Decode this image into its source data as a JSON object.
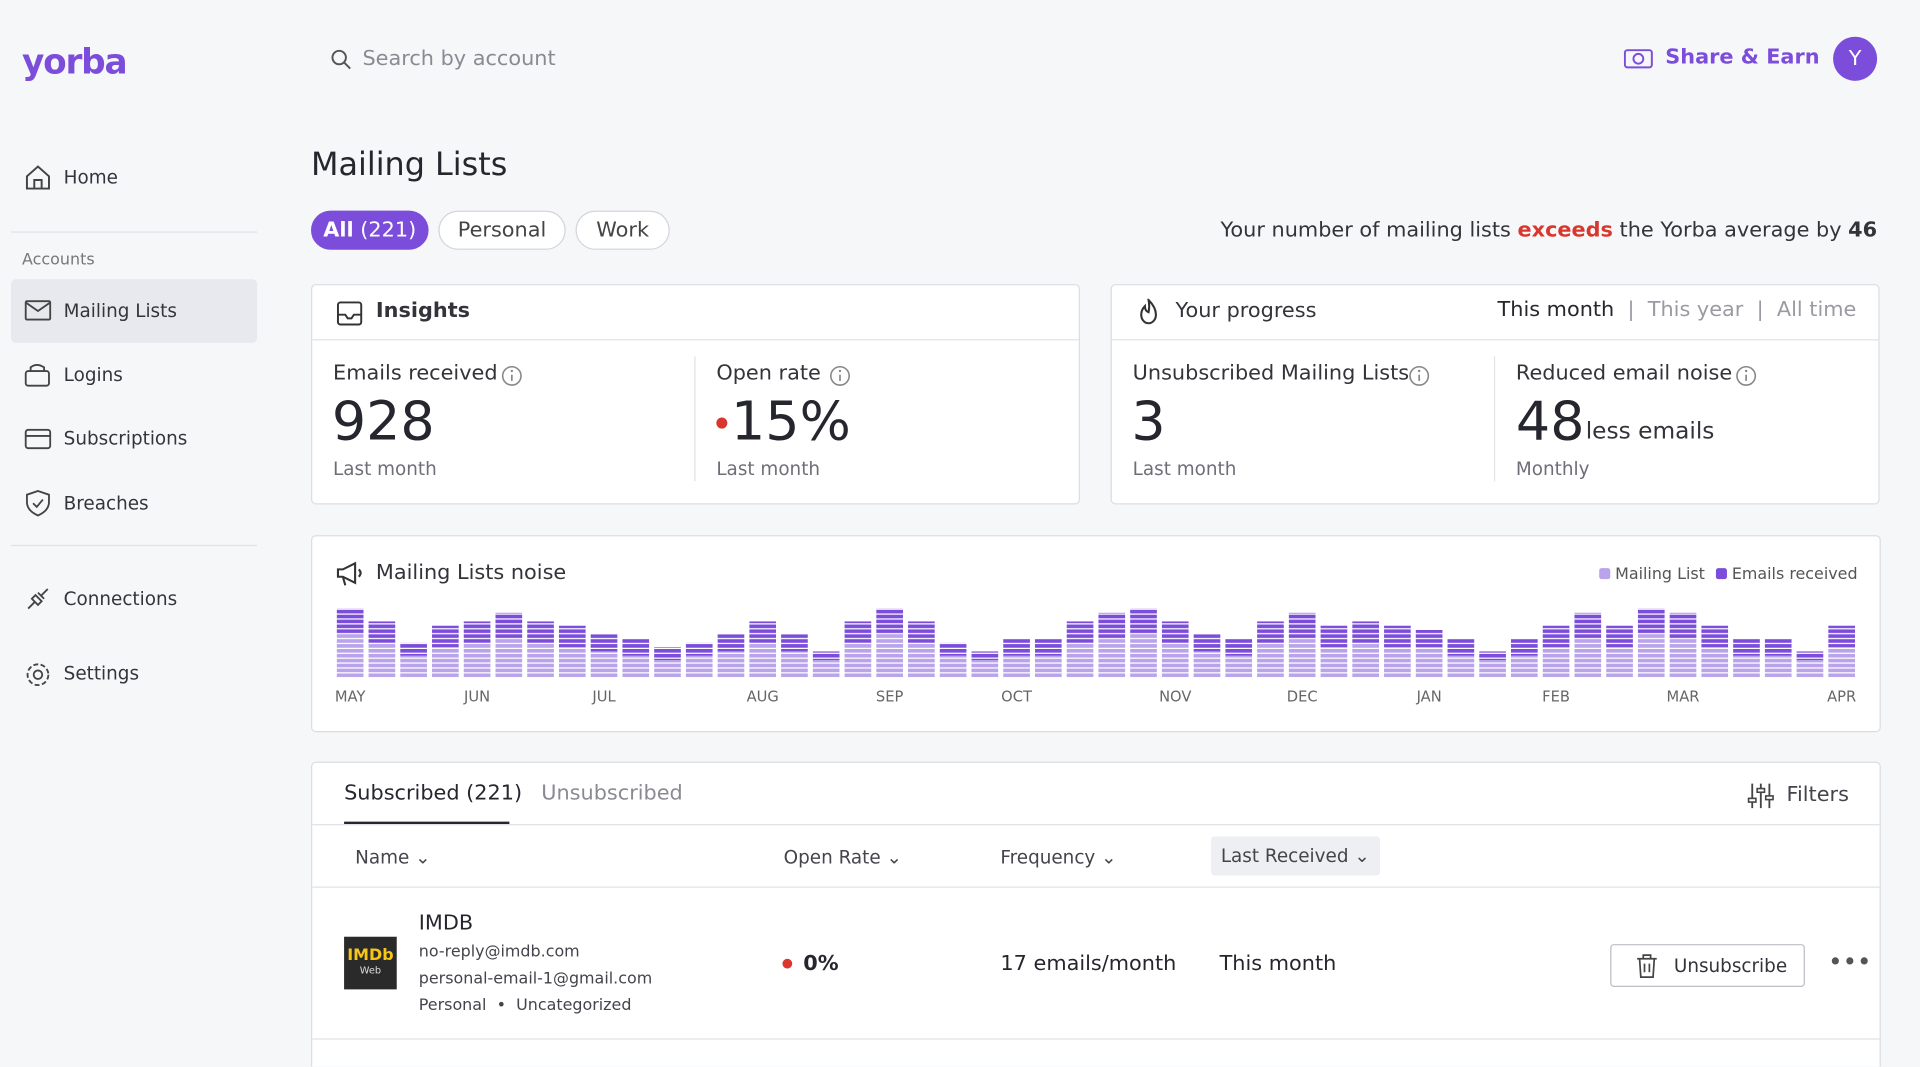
{
  "header": {
    "logo": "yorba",
    "search_placeholder": "Search by account",
    "share": "Share & Earn",
    "avatar": "Y"
  },
  "sidebar": {
    "home": "Home",
    "section": "Accounts",
    "items": [
      "Mailing Lists",
      "Logins",
      "Subscriptions",
      "Breaches"
    ],
    "connections": "Connections",
    "settings": "Settings"
  },
  "page": {
    "title": "Mailing Lists",
    "filters": [
      "All",
      "(221)",
      "Personal",
      "Work"
    ],
    "notice": {
      "before": "Your number of mailing lists",
      "highlight": "exceeds",
      "after": "the Yorba average by",
      "number": "46"
    }
  },
  "insights": {
    "title": "Insights",
    "stats": [
      {
        "label": "Emails received",
        "value": "928",
        "note": "Last month"
      },
      {
        "label": "Open rate",
        "value": "15%",
        "note": "Last month"
      }
    ]
  },
  "progress": {
    "title": "Your progress",
    "periods": [
      "This month",
      "This year",
      "All time"
    ],
    "stats": [
      {
        "label": "Unsubscribed Mailing Lists",
        "value": "3",
        "note": "Last month"
      },
      {
        "label": "Reduced email noise",
        "value": "48",
        "unit": "less emails",
        "note": "Monthly"
      }
    ]
  },
  "chart_data": {
    "type": "bar",
    "stacked": true,
    "title": "Mailing Lists noise",
    "legend": "top-right",
    "categories": [
      "MAY",
      null,
      null,
      null,
      "JUN",
      null,
      null,
      null,
      "JUL",
      null,
      null,
      null,
      null,
      "AUG",
      null,
      null,
      null,
      "SEP",
      null,
      null,
      null,
      "OCT",
      null,
      null,
      null,
      null,
      "NOV",
      null,
      null,
      null,
      "DEC",
      null,
      null,
      null,
      "JAN",
      null,
      null,
      null,
      "FEB",
      null,
      null,
      null,
      "MAR",
      null,
      null,
      null,
      null,
      "APR"
    ],
    "series": [
      {
        "name": "Mailing List",
        "color": "#b9a3ea",
        "values": [
          10,
          8,
          5,
          7,
          8,
          9,
          8,
          7,
          6,
          5,
          4,
          5,
          6,
          8,
          6,
          4,
          8,
          10,
          8,
          5,
          4,
          5,
          5,
          8,
          9,
          10,
          8,
          6,
          5,
          8,
          9,
          7,
          8,
          7,
          7,
          5,
          4,
          5,
          7,
          9,
          7,
          10,
          9,
          7,
          5,
          5,
          4,
          7
        ]
      },
      {
        "name": "Emails received",
        "color": "#7c4ddb",
        "values": [
          6,
          5,
          3,
          5,
          5,
          6,
          5,
          5,
          4,
          4,
          3,
          3,
          4,
          5,
          4,
          2,
          5,
          6,
          5,
          3,
          2,
          4,
          4,
          5,
          6,
          6,
          5,
          4,
          4,
          5,
          6,
          5,
          5,
          5,
          4,
          4,
          2,
          4,
          5,
          6,
          5,
          6,
          6,
          5,
          4,
          4,
          2,
          5
        ]
      }
    ],
    "ylim": [
      0,
      16
    ]
  },
  "table": {
    "tabs": [
      "Subscribed (221)",
      "Unsubscribed"
    ],
    "filters": "Filters",
    "columns": [
      "Name",
      "Open Rate",
      "Frequency",
      "Last Received"
    ],
    "rows": [
      {
        "logo": "IMDb",
        "logo_sub": "Web",
        "name": "IMDB",
        "email": "no-reply@imdb.com",
        "account": "personal-email-1@gmail.com",
        "tags": [
          "Personal",
          "Uncategorized"
        ],
        "open_rate": "0%",
        "frequency": "17 emails/month",
        "last_received": "This month",
        "action": "Unsubscribe"
      }
    ]
  }
}
